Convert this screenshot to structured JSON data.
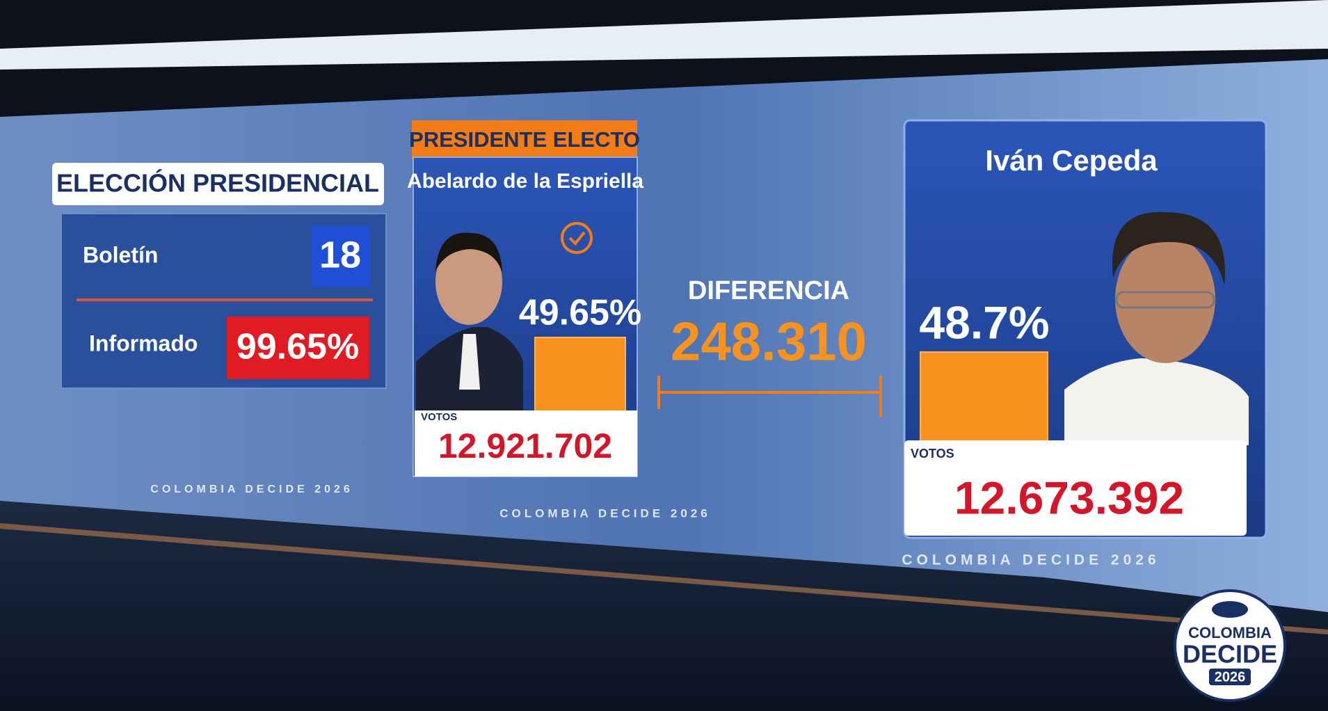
{
  "header": {
    "title": "ELECCIÓN PRESIDENCIAL"
  },
  "status": {
    "bulletin_label": "Boletín",
    "bulletin": "18",
    "reported_label": "Informado",
    "reported": "99.65%"
  },
  "winner_badge": "PRESIDENTE ELECTO",
  "candidates": [
    {
      "name": "Abelardo de la Espriella",
      "percent": "49.65%",
      "votes_label": "VOTOS",
      "votes": "12.921.702"
    },
    {
      "name": "Iván Cepeda",
      "percent": "48.7%",
      "votes_label": "VOTOS",
      "votes": "12.673.392"
    }
  ],
  "difference": {
    "label": "DIFERENCIA",
    "value": "248.310"
  },
  "backdrop": "COLOMBIA DECIDE 2026",
  "logo": {
    "line1": "COLOMBIA",
    "line2": "DECIDE",
    "line3": "2026"
  }
}
